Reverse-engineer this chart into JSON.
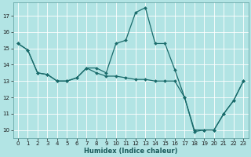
{
  "xlabel": "Humidex (Indice chaleur)",
  "bg_color": "#b2e4e4",
  "grid_color": "#ffffff",
  "line_color": "#1a6b6b",
  "line1_y": [
    15.3,
    14.9,
    13.5,
    13.4,
    13.0,
    13.0,
    13.2,
    13.8,
    13.8,
    13.5,
    15.3,
    15.5,
    17.2,
    17.5,
    15.3,
    15.3,
    13.7,
    12.0,
    9.9,
    10.0,
    10.0,
    11.0,
    11.8,
    13.0
  ],
  "line2_y": [
    15.3,
    14.9,
    13.5,
    13.4,
    13.0,
    13.0,
    13.2,
    13.8,
    13.5,
    13.3,
    13.3,
    13.2,
    13.1,
    13.1,
    13.0,
    13.0,
    13.0,
    12.0,
    10.0,
    10.0,
    10.0,
    11.0,
    11.8,
    13.0
  ],
  "ylim": [
    9.5,
    17.8
  ],
  "xlim": [
    -0.5,
    23.5
  ],
  "yticks": [
    10,
    11,
    12,
    13,
    14,
    15,
    16,
    17
  ],
  "xticks": [
    0,
    1,
    2,
    3,
    4,
    5,
    6,
    7,
    8,
    9,
    10,
    11,
    12,
    13,
    14,
    15,
    16,
    17,
    18,
    19,
    20,
    21,
    22,
    23
  ],
  "xlabel_fontsize": 6.0,
  "tick_fontsize": 5.0,
  "linewidth": 0.9,
  "markersize": 2.0
}
